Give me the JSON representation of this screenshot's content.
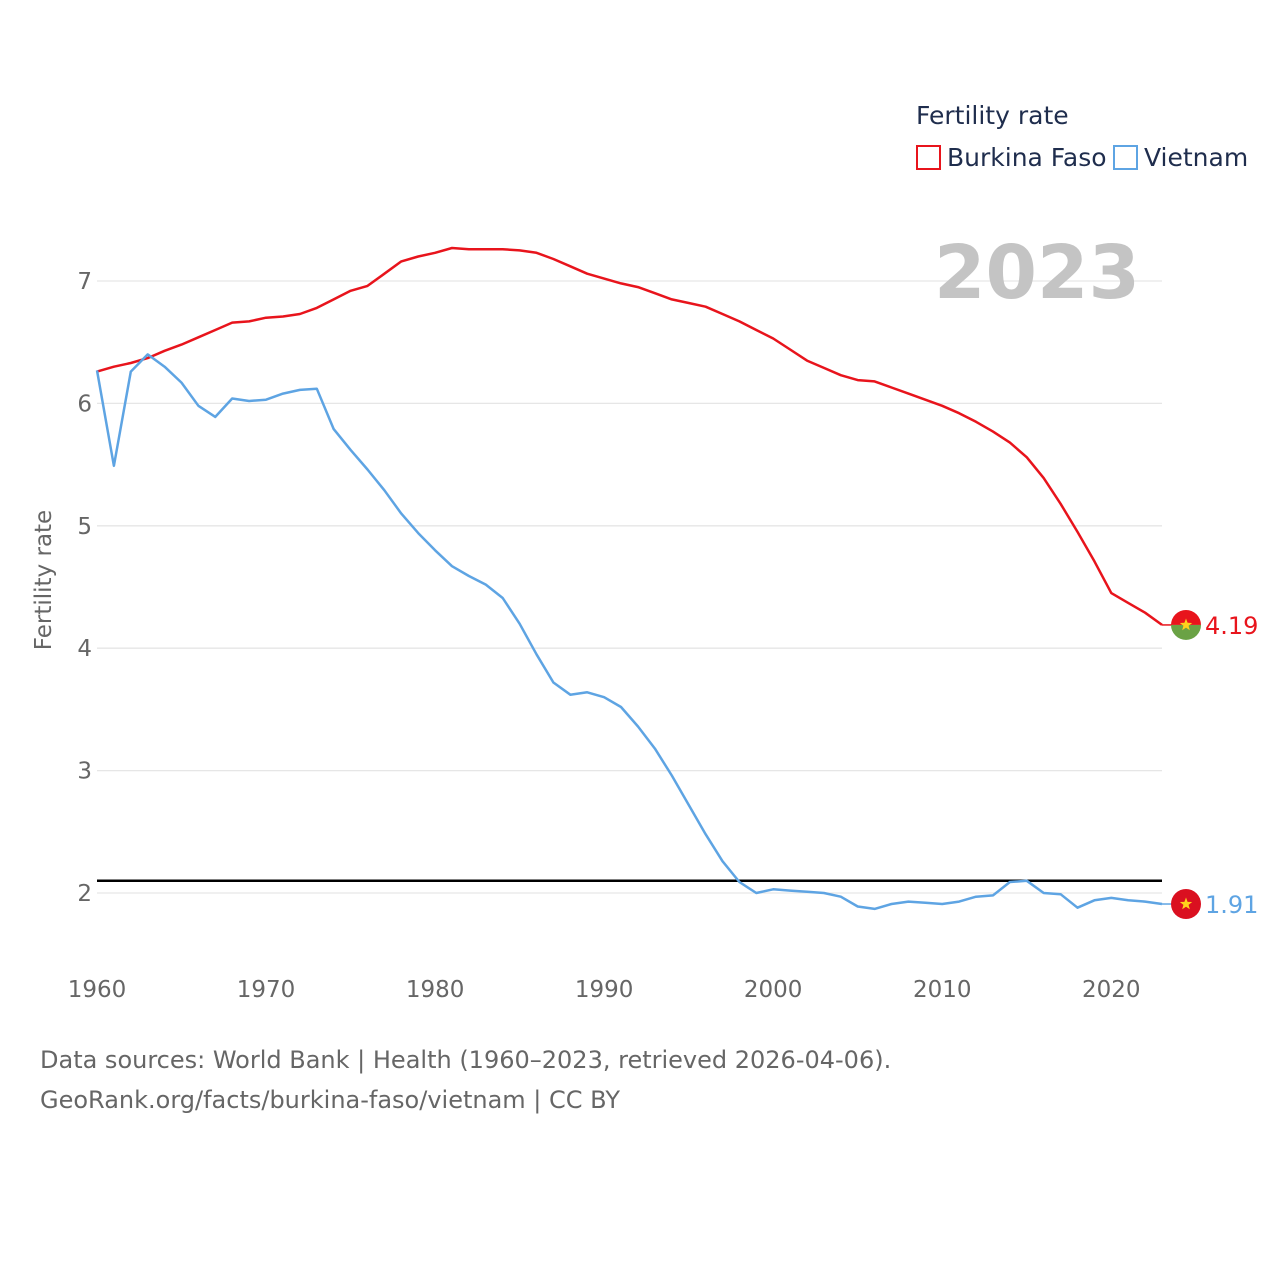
{
  "chart_data": {
    "type": "line",
    "legend_title": "Fertility rate",
    "year_label": "2023",
    "ylabel": "Fertility rate",
    "xlabel": "",
    "xlim": [
      1960,
      2023
    ],
    "ylim": [
      1.5,
      7.5
    ],
    "x_ticks": [
      1960,
      1970,
      1980,
      1990,
      2000,
      2010,
      2020
    ],
    "y_ticks": [
      2,
      3,
      4,
      5,
      6,
      7
    ],
    "reference_line": 2.1,
    "legend_position": "top-right",
    "series": [
      {
        "name": "Burkina Faso",
        "color": "#e8141c",
        "end_label": "4.19",
        "flag": "burkina-faso",
        "x": [
          1960,
          1961,
          1962,
          1963,
          1964,
          1965,
          1966,
          1967,
          1968,
          1969,
          1970,
          1971,
          1972,
          1973,
          1974,
          1975,
          1976,
          1977,
          1978,
          1979,
          1980,
          1981,
          1982,
          1983,
          1984,
          1985,
          1986,
          1987,
          1988,
          1989,
          1990,
          1991,
          1992,
          1993,
          1994,
          1995,
          1996,
          1997,
          1998,
          1999,
          2000,
          2001,
          2002,
          2003,
          2004,
          2005,
          2006,
          2007,
          2008,
          2009,
          2010,
          2011,
          2012,
          2013,
          2014,
          2015,
          2016,
          2017,
          2018,
          2019,
          2020,
          2021,
          2022,
          2023
        ],
        "values": [
          6.26,
          6.3,
          6.33,
          6.37,
          6.43,
          6.48,
          6.54,
          6.6,
          6.66,
          6.67,
          6.7,
          6.71,
          6.73,
          6.78,
          6.85,
          6.92,
          6.96,
          7.06,
          7.16,
          7.2,
          7.23,
          7.27,
          7.26,
          7.26,
          7.26,
          7.25,
          7.23,
          7.18,
          7.12,
          7.06,
          7.02,
          6.98,
          6.95,
          6.9,
          6.85,
          6.82,
          6.79,
          6.73,
          6.67,
          6.6,
          6.53,
          6.44,
          6.35,
          6.29,
          6.23,
          6.19,
          6.18,
          6.13,
          6.08,
          6.03,
          5.98,
          5.92,
          5.85,
          5.77,
          5.68,
          5.56,
          5.39,
          5.18,
          4.95,
          4.71,
          4.45,
          4.37,
          4.29,
          4.19
        ]
      },
      {
        "name": "Vietnam",
        "color": "#5ea4e3",
        "end_label": "1.91",
        "flag": "vietnam",
        "x": [
          1960,
          1961,
          1962,
          1963,
          1964,
          1965,
          1966,
          1967,
          1968,
          1969,
          1970,
          1971,
          1972,
          1973,
          1974,
          1975,
          1976,
          1977,
          1978,
          1979,
          1980,
          1981,
          1982,
          1983,
          1984,
          1985,
          1986,
          1987,
          1988,
          1989,
          1990,
          1991,
          1992,
          1993,
          1994,
          1995,
          1996,
          1997,
          1998,
          1999,
          2000,
          2001,
          2002,
          2003,
          2004,
          2005,
          2006,
          2007,
          2008,
          2009,
          2010,
          2011,
          2012,
          2013,
          2014,
          2015,
          2016,
          2017,
          2018,
          2019,
          2020,
          2021,
          2022,
          2023
        ],
        "values": [
          6.27,
          5.49,
          6.26,
          6.4,
          6.3,
          6.17,
          5.98,
          5.89,
          6.04,
          6.02,
          6.03,
          6.08,
          6.11,
          6.12,
          5.79,
          5.62,
          5.46,
          5.29,
          5.1,
          4.94,
          4.8,
          4.67,
          4.59,
          4.52,
          4.41,
          4.2,
          3.95,
          3.72,
          3.62,
          3.64,
          3.6,
          3.52,
          3.36,
          3.18,
          2.96,
          2.72,
          2.48,
          2.26,
          2.09,
          2.0,
          2.03,
          2.02,
          2.01,
          2.0,
          1.97,
          1.89,
          1.87,
          1.91,
          1.93,
          1.92,
          1.91,
          1.93,
          1.97,
          1.98,
          2.09,
          2.1,
          2.0,
          1.99,
          1.88,
          1.94,
          1.96,
          1.94,
          1.93,
          1.91
        ]
      }
    ]
  },
  "source": {
    "line1": "Data sources: World Bank | Health (1960–2023, retrieved 2026-04-06).",
    "line2": "GeoRank.org/facts/burkina-faso/vietnam | CC BY"
  }
}
